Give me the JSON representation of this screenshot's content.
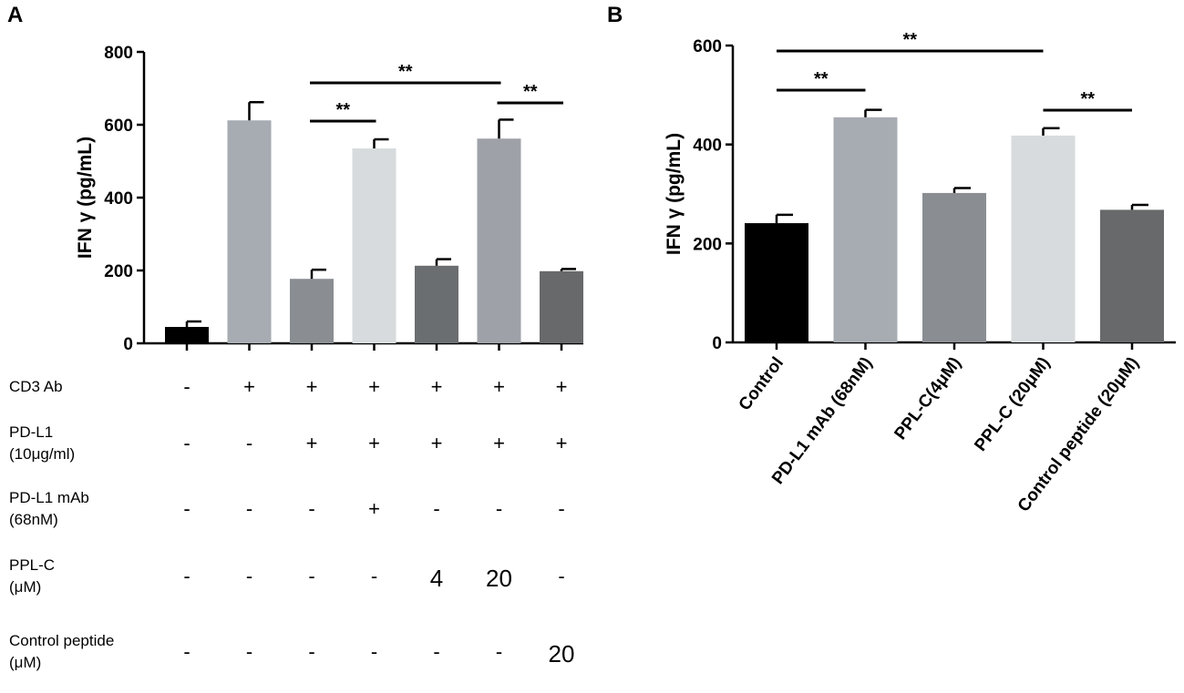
{
  "chart_data": [
    {
      "panel_label": "A",
      "type": "bar",
      "ylabel": "IFN γ (pg/mL)",
      "ylim": [
        0,
        800
      ],
      "yticks": [
        "0",
        "200",
        "400",
        "600",
        "800"
      ],
      "values": [
        45,
        612,
        177,
        535,
        213,
        562,
        198
      ],
      "errors": [
        15,
        50,
        25,
        25,
        18,
        52,
        6
      ],
      "colors": [
        "#000000",
        "#a7abb2",
        "#8a8e92",
        "#d7dbdd",
        "#6b6e71",
        "#9ea2a8",
        "#67696b"
      ],
      "significance": [
        {
          "from": 2,
          "to": 3,
          "label": "**"
        },
        {
          "from": 2,
          "to": 5,
          "label": "**"
        },
        {
          "from": 5,
          "to": 6,
          "label": "**"
        }
      ],
      "condition_table": [
        {
          "label": [
            "CD3 Ab"
          ],
          "cells": [
            "-",
            "+",
            "+",
            "+",
            "+",
            "+",
            "+"
          ]
        },
        {
          "label": [
            "PD-L1",
            "(10μg/ml)"
          ],
          "cells": [
            "-",
            "-",
            "+",
            "+",
            "+",
            "+",
            "+"
          ]
        },
        {
          "label": [
            "PD-L1 mAb",
            "(68nM)"
          ],
          "cells": [
            "-",
            "-",
            "-",
            "+",
            "-",
            "-",
            "-"
          ]
        },
        {
          "label": [
            "PPL-C",
            "(μM)"
          ],
          "cells": [
            "-",
            "-",
            "-",
            "-",
            "4",
            "20",
            "-"
          ]
        },
        {
          "label": [
            "Control peptide",
            "(μM)"
          ],
          "cells": [
            "-",
            "-",
            "-",
            "-",
            "-",
            "-",
            "20"
          ]
        }
      ]
    },
    {
      "panel_label": "B",
      "type": "bar",
      "ylabel": "IFN γ (pg/mL)",
      "ylim": [
        0,
        600
      ],
      "yticks": [
        "0",
        "200",
        "400",
        "600"
      ],
      "categories": [
        "Control",
        "PD-L1 mAb (68nM)",
        "PPL-C(4μM)",
        "PPL-C (20μM)",
        "Control peptide (20μM)"
      ],
      "values": [
        241,
        455,
        302,
        418,
        268
      ],
      "errors": [
        17,
        15,
        10,
        15,
        10
      ],
      "colors": [
        "#000000",
        "#a7abb2",
        "#8a8e92",
        "#d7dbdd",
        "#67696b"
      ],
      "significance": [
        {
          "from": 0,
          "to": 1,
          "label": "**"
        },
        {
          "from": 0,
          "to": 3,
          "label": "**"
        },
        {
          "from": 3,
          "to": 4,
          "label": "**"
        }
      ]
    }
  ]
}
